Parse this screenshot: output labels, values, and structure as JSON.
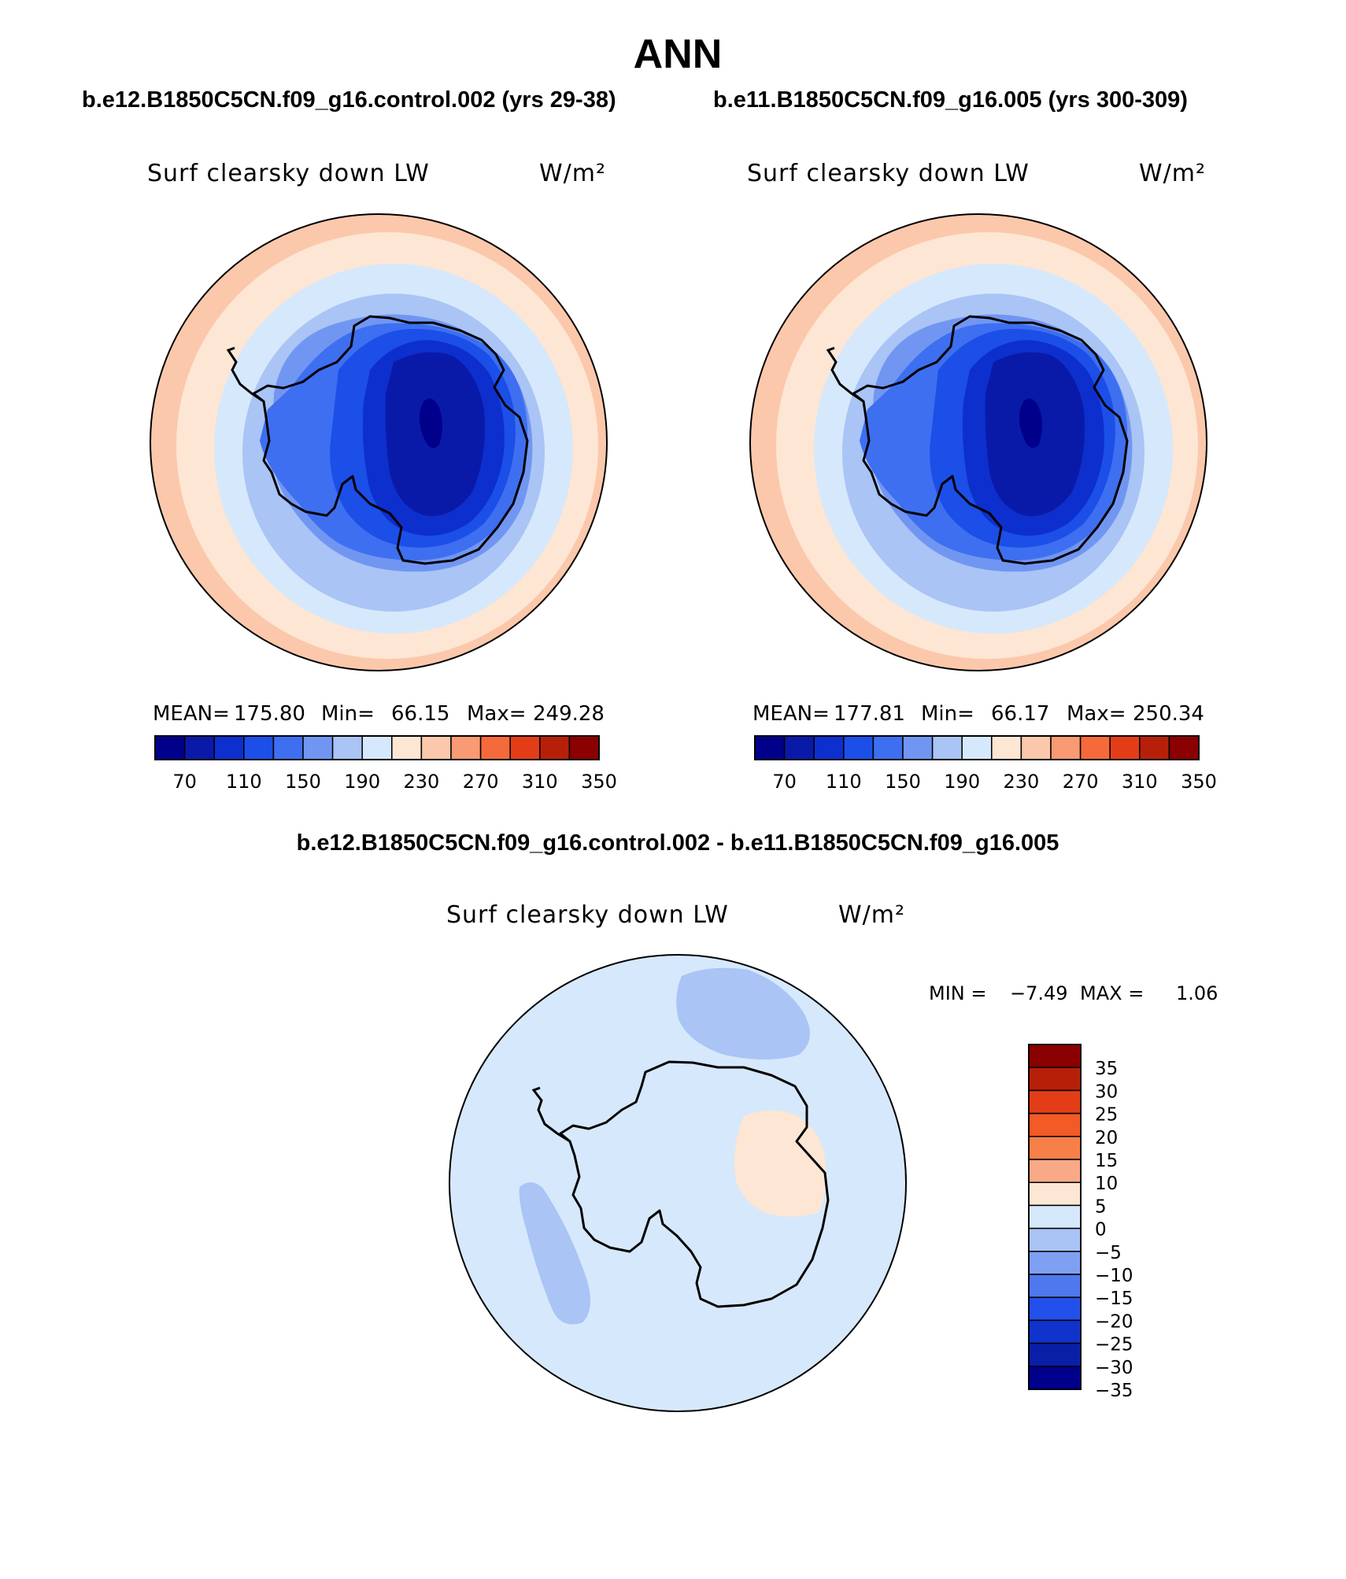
{
  "figure": {
    "title": "ANN",
    "panel1_title": "b.e12.B1850C5CN.f09_g16.control.002 (yrs 29-38)",
    "panel2_title": "b.e11.B1850C5CN.f09_g16.005 (yrs 300-309)",
    "diff_title": "b.e12.B1850C5CN.f09_g16.control.002 - b.e11.B1850C5CN.f09_g16.005"
  },
  "chart_data": [
    {
      "type": "polar-contour-map",
      "region": "Antarctica (south polar stereographic)",
      "variable": "Surf clearsky down LW",
      "units": "W/m²",
      "case": "b.e12.B1850C5CN.f09_g16.control.002 (yrs 29-38)",
      "stats": {
        "mean_label": "MEAN=",
        "mean": "175.80",
        "min_label": "Min=",
        "min": "66.15",
        "max_label": "Max=",
        "max": "249.28"
      },
      "colorbar": {
        "orientation": "horizontal",
        "ticks": [
          "70",
          "110",
          "150",
          "190",
          "230",
          "270",
          "310",
          "350"
        ],
        "colors": [
          "#00008b",
          "#0a1aa8",
          "#0d2fcd",
          "#1c4ee8",
          "#3d6ff0",
          "#7196f2",
          "#a9c4f5",
          "#d6e8fb",
          "#fde6d4",
          "#fbc8ab",
          "#f89a73",
          "#f46a3a",
          "#e33d18",
          "#b72008",
          "#8b0000"
        ]
      }
    },
    {
      "type": "polar-contour-map",
      "region": "Antarctica (south polar stereographic)",
      "variable": "Surf clearsky down LW",
      "units": "W/m²",
      "case": "b.e11.B1850C5CN.f09_g16.005 (yrs 300-309)",
      "stats": {
        "mean_label": "MEAN=",
        "mean": "177.81",
        "min_label": "Min=",
        "min": "66.17",
        "max_label": "Max=",
        "max": "250.34"
      },
      "colorbar": {
        "orientation": "horizontal",
        "ticks": [
          "70",
          "110",
          "150",
          "190",
          "230",
          "270",
          "310",
          "350"
        ],
        "colors": [
          "#00008b",
          "#0a1aa8",
          "#0d2fcd",
          "#1c4ee8",
          "#3d6ff0",
          "#7196f2",
          "#a9c4f5",
          "#d6e8fb",
          "#fde6d4",
          "#fbc8ab",
          "#f89a73",
          "#f46a3a",
          "#e33d18",
          "#b72008",
          "#8b0000"
        ]
      }
    },
    {
      "type": "polar-contour-map",
      "region": "Antarctica (south polar stereographic)",
      "variable": "Surf clearsky down LW",
      "units": "W/m²",
      "case": "b.e12.B1850C5CN.f09_g16.control.002 - b.e11.B1850C5CN.f09_g16.005",
      "stats": {
        "min_label": "MIN =",
        "min": "−7.49",
        "max_label": "MAX =",
        "max": "1.06"
      },
      "colorbar": {
        "orientation": "vertical",
        "ticks_top_to_bottom": [
          "35",
          "30",
          "25",
          "20",
          "15",
          "10",
          "5",
          "0",
          "−5",
          "−10",
          "−15",
          "−20",
          "−25",
          "−30",
          "−35"
        ],
        "colors_top_to_bottom": [
          "#8b0000",
          "#b72008",
          "#e33d18",
          "#f25a26",
          "#f78048",
          "#f9a986",
          "#fde6d4",
          "#d6e8fb",
          "#a9c4f5",
          "#7f9ff2",
          "#4f78ef",
          "#2350ea",
          "#0f33cc",
          "#0a1fa8",
          "#00008b"
        ]
      }
    }
  ]
}
